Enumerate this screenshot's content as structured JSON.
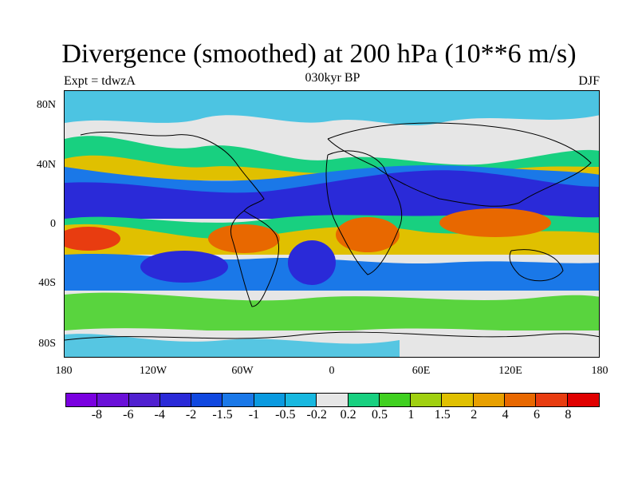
{
  "header": {
    "title": "Divergence (smoothed) at 200 hPa (10**6 m/s)",
    "subtitle": "030kyr BP",
    "left_label": "Expt = tdwzA",
    "right_label": "DJF"
  },
  "axes": {
    "lat_ticks": [
      "80N",
      "40N",
      "0",
      "40S",
      "80S"
    ],
    "lon_ticks": [
      "180",
      "120W",
      "60W",
      "0",
      "60E",
      "120E",
      "180"
    ]
  },
  "colorbar": {
    "labels": [
      "-8",
      "-6",
      "-4",
      "-2",
      "-1.5",
      "-1",
      "-0.5",
      "-0.2",
      "0.2",
      "0.5",
      "1",
      "1.5",
      "2",
      "4",
      "6",
      "8"
    ],
    "colors": [
      "#7a00e0",
      "#6a10d8",
      "#5020d0",
      "#2a2ad8",
      "#1048e0",
      "#1a78e8",
      "#0a9ae0",
      "#18b8e0",
      "#e6e6e6",
      "#18d080",
      "#40d020",
      "#a0d010",
      "#e0c000",
      "#e8a000",
      "#e86800",
      "#e83c10",
      "#e00000"
    ]
  },
  "map_colors": {
    "background": "#e6e6e6",
    "strong_convergence": "#2a2ad8",
    "moderate_convergence": "#1a78e8",
    "weak_convergence": "#18b8e0",
    "weak_divergence": "#18d080",
    "divergence": "#40d020",
    "moderate_divergence": "#e0c000",
    "strong_divergence": "#e86800",
    "peak_divergence": "#e83c10",
    "coastline": "#000000"
  }
}
